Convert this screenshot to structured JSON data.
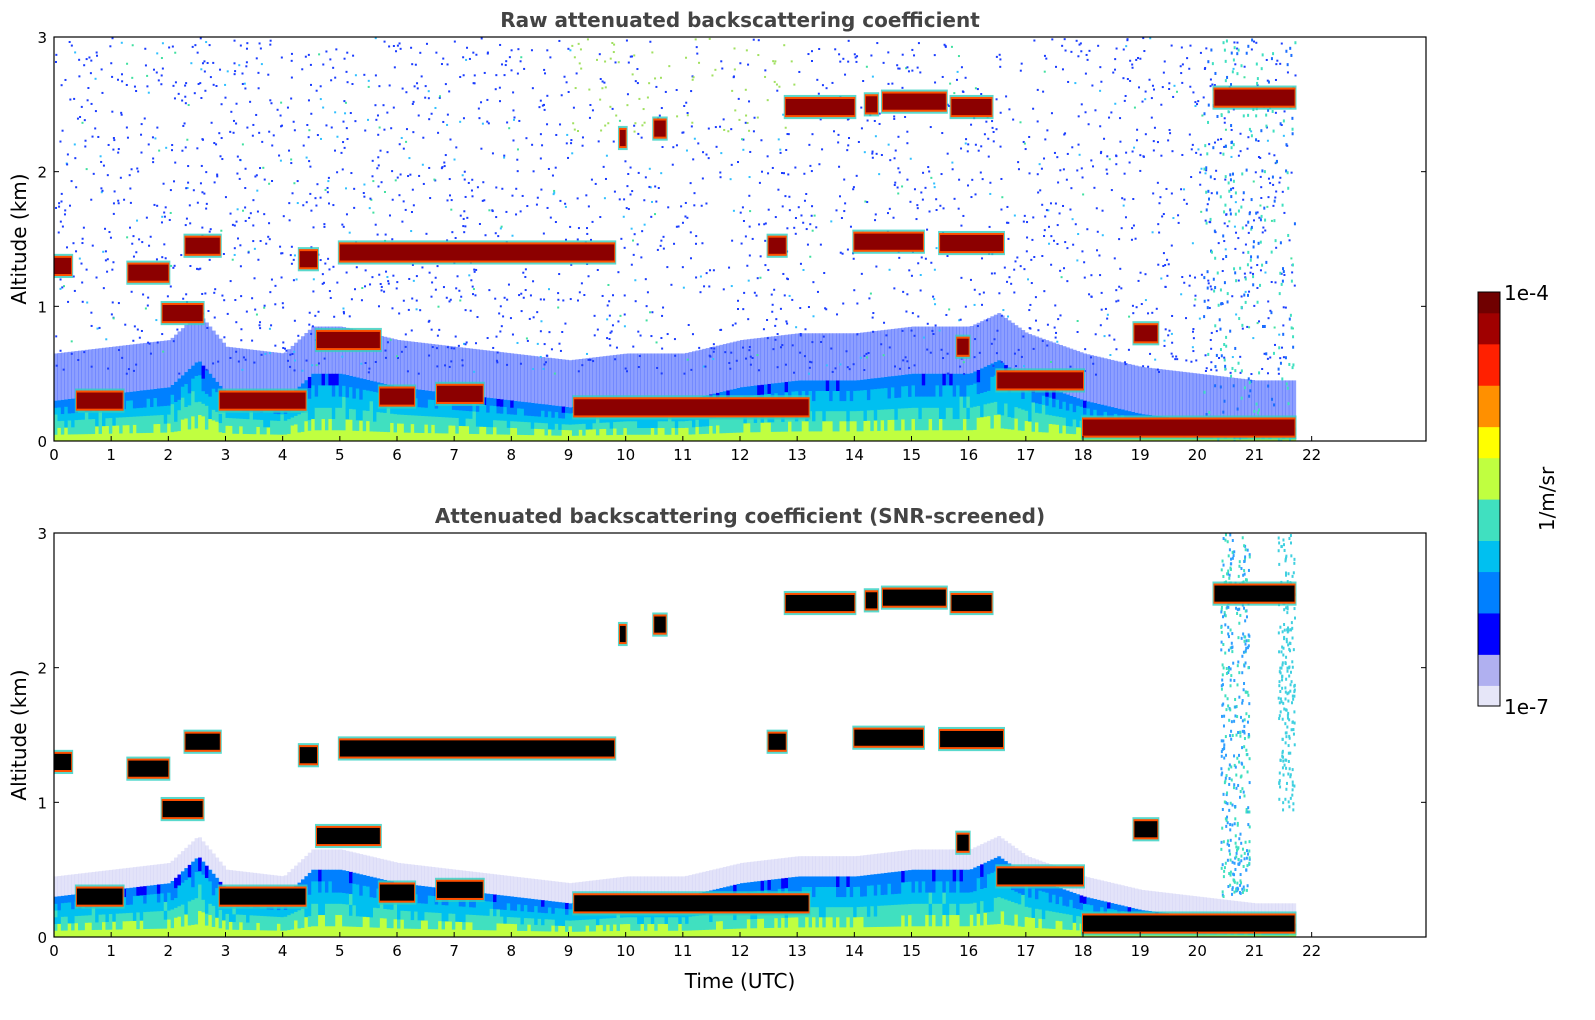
{
  "chart_data": [
    {
      "type": "heatmap",
      "title": "Raw attenuated backscattering coefficient",
      "xlabel": "",
      "ylabel": "Altitude (km)",
      "xlim": [
        0,
        24
      ],
      "ylim": [
        0,
        3
      ],
      "x_ticks": [
        "0",
        "1",
        "2",
        "3",
        "4",
        "5",
        "6",
        "7",
        "8",
        "9",
        "10",
        "11",
        "12",
        "13",
        "14",
        "15",
        "16",
        "17",
        "18",
        "19",
        "20",
        "21",
        "22"
      ],
      "y_ticks": [
        "0",
        "1",
        "2",
        "3"
      ],
      "data_end_time": 21.7,
      "boundary_layer": {
        "x": [
          0,
          1,
          2,
          2.5,
          3,
          4,
          4.5,
          5,
          6,
          7,
          8,
          9,
          10,
          11,
          12,
          13,
          14,
          15,
          16,
          16.5,
          17,
          18,
          19,
          20,
          21,
          21.7
        ],
        "top_km": [
          0.3,
          0.35,
          0.4,
          0.6,
          0.35,
          0.3,
          0.5,
          0.5,
          0.4,
          0.35,
          0.3,
          0.25,
          0.3,
          0.3,
          0.4,
          0.45,
          0.45,
          0.5,
          0.5,
          0.6,
          0.45,
          0.3,
          0.2,
          0.15,
          0.1,
          0.1
        ]
      },
      "cloud_layers": [
        {
          "x_start": 0.0,
          "x_end": 0.3,
          "alt_km": 1.3
        },
        {
          "x_start": 0.4,
          "x_end": 1.2,
          "alt_km": 0.3
        },
        {
          "x_start": 1.3,
          "x_end": 2.0,
          "alt_km": 1.25
        },
        {
          "x_start": 2.3,
          "x_end": 2.9,
          "alt_km": 1.45
        },
        {
          "x_start": 1.9,
          "x_end": 2.6,
          "alt_km": 0.95
        },
        {
          "x_start": 2.9,
          "x_end": 4.4,
          "alt_km": 0.3
        },
        {
          "x_start": 4.3,
          "x_end": 4.6,
          "alt_km": 1.35
        },
        {
          "x_start": 4.6,
          "x_end": 5.7,
          "alt_km": 0.75
        },
        {
          "x_start": 5.0,
          "x_end": 9.8,
          "alt_km": 1.4
        },
        {
          "x_start": 5.7,
          "x_end": 6.3,
          "alt_km": 0.33
        },
        {
          "x_start": 6.7,
          "x_end": 7.5,
          "alt_km": 0.35
        },
        {
          "x_start": 9.9,
          "x_end": 10.0,
          "alt_km": 2.25
        },
        {
          "x_start": 10.5,
          "x_end": 10.7,
          "alt_km": 2.32
        },
        {
          "x_start": 9.1,
          "x_end": 13.2,
          "alt_km": 0.25
        },
        {
          "x_start": 12.5,
          "x_end": 12.8,
          "alt_km": 1.45
        },
        {
          "x_start": 12.8,
          "x_end": 14.0,
          "alt_km": 2.48
        },
        {
          "x_start": 14.2,
          "x_end": 14.4,
          "alt_km": 2.5
        },
        {
          "x_start": 14.5,
          "x_end": 15.6,
          "alt_km": 2.52
        },
        {
          "x_start": 15.7,
          "x_end": 16.4,
          "alt_km": 2.48
        },
        {
          "x_start": 14.0,
          "x_end": 15.2,
          "alt_km": 1.48
        },
        {
          "x_start": 15.5,
          "x_end": 16.6,
          "alt_km": 1.47
        },
        {
          "x_start": 15.8,
          "x_end": 16.0,
          "alt_km": 0.7
        },
        {
          "x_start": 16.5,
          "x_end": 18.0,
          "alt_km": 0.45
        },
        {
          "x_start": 18.0,
          "x_end": 21.7,
          "alt_km": 0.1
        },
        {
          "x_start": 18.9,
          "x_end": 19.3,
          "alt_km": 0.8
        },
        {
          "x_start": 20.3,
          "x_end": 21.7,
          "alt_km": 2.55
        }
      ]
    },
    {
      "type": "heatmap",
      "title": "Attenuated backscattering coefficient (SNR-screened)",
      "xlabel": "Time (UTC)",
      "ylabel": "Altitude (km)",
      "xlim": [
        0,
        24
      ],
      "ylim": [
        0,
        3
      ],
      "x_ticks": [
        "0",
        "1",
        "2",
        "3",
        "4",
        "5",
        "6",
        "7",
        "8",
        "9",
        "10",
        "11",
        "12",
        "13",
        "14",
        "15",
        "16",
        "17",
        "18",
        "19",
        "20",
        "21",
        "22"
      ],
      "y_ticks": [
        "0",
        "1",
        "2",
        "3"
      ],
      "data_end_time": 21.7
    }
  ],
  "colorbar": {
    "label": "1/m/sr",
    "max_label": "1e-4",
    "min_label": "1e-7",
    "scale": "log",
    "colormap": [
      "#e6e6f8",
      "#b0b0f0",
      "#0000ff",
      "#0080ff",
      "#00c0f0",
      "#40e0c0",
      "#c0ff40",
      "#ffff00",
      "#ff9000",
      "#ff2000",
      "#a00000",
      "#700000"
    ]
  }
}
